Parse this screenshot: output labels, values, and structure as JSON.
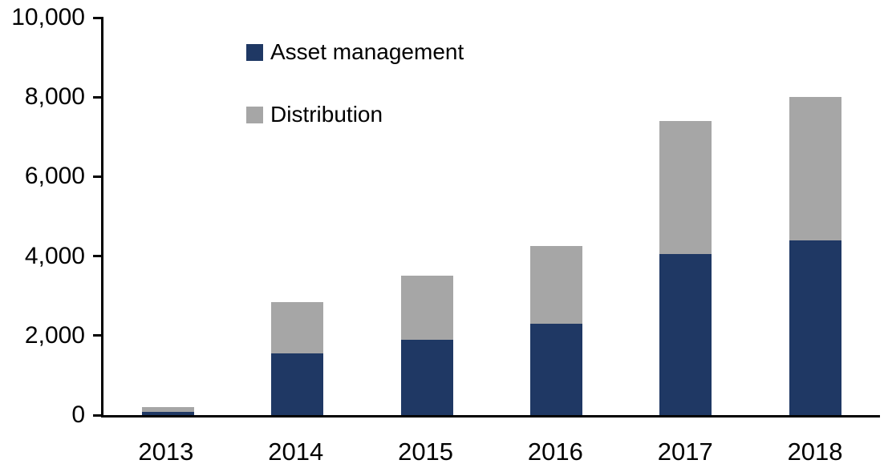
{
  "chart_data": {
    "type": "bar",
    "stacked": true,
    "title": "",
    "xlabel": "",
    "ylabel": "",
    "categories": [
      "2013",
      "2014",
      "2015",
      "2016",
      "2017",
      "2018"
    ],
    "series": [
      {
        "name": "Asset management",
        "color": "#1f3864",
        "values": [
          80,
          1550,
          1900,
          2300,
          4050,
          4400
        ]
      },
      {
        "name": "Distribution",
        "color": "#a6a6a6",
        "values": [
          120,
          1300,
          1600,
          1950,
          3350,
          3600
        ]
      }
    ],
    "stack_totals": [
      200,
      2850,
      3500,
      4250,
      7400,
      8000
    ],
    "ylim": [
      0,
      10000
    ],
    "yticks": [
      0,
      2000,
      4000,
      6000,
      8000,
      10000
    ],
    "ytick_labels": [
      "0",
      "2,000",
      "4,000",
      "6,000",
      "8,000",
      "10,000"
    ],
    "legend": {
      "position": "top-left",
      "entries": [
        "Asset management",
        "Distribution"
      ]
    },
    "grid": false,
    "axis_color": "#000000",
    "text_color": "#000000",
    "background": "#ffffff"
  }
}
